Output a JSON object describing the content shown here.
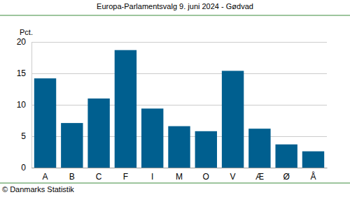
{
  "chart_data": {
    "type": "bar",
    "title": "Europa-Parlamentsvalg 9. juni 2024 - Gødvad",
    "ylabel": "Pct.",
    "source": "© Danmarks Statistik",
    "categories": [
      "A",
      "B",
      "C",
      "F",
      "I",
      "M",
      "O",
      "V",
      "Æ",
      "Ø",
      "Å"
    ],
    "values": [
      14.2,
      7.1,
      11.0,
      18.7,
      9.4,
      6.6,
      5.8,
      15.4,
      6.2,
      3.7,
      2.6
    ],
    "color": "#005f8f",
    "ylim": [
      0,
      20
    ],
    "yticks": [
      0,
      5,
      10,
      15,
      20
    ],
    "grid": true
  }
}
